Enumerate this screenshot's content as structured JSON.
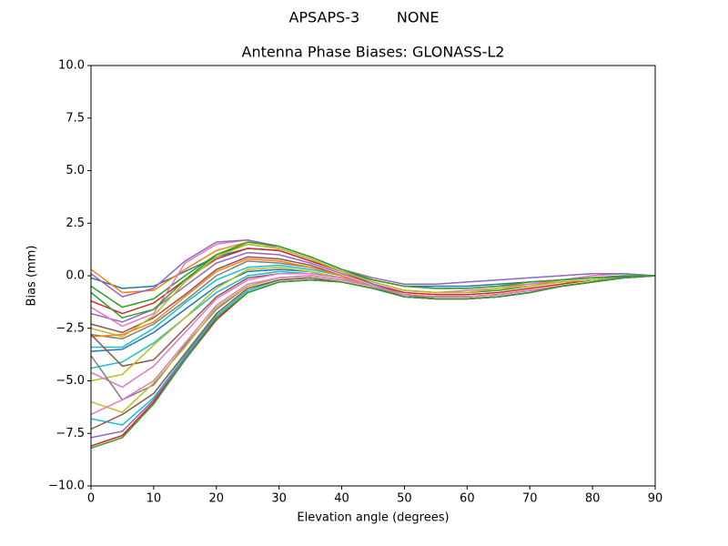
{
  "chart_data": {
    "type": "line",
    "suptitle": "APSAPS-3        NONE",
    "title": "Antenna Phase Biases: GLONASS-L2",
    "xlabel": "Elevation angle (degrees)",
    "ylabel": "Bias (mm)",
    "x": [
      0,
      5,
      10,
      15,
      20,
      25,
      30,
      35,
      40,
      45,
      50,
      55,
      60,
      65,
      70,
      75,
      80,
      85,
      90
    ],
    "xlim": [
      0,
      90
    ],
    "xticks": [
      0,
      10,
      20,
      30,
      40,
      50,
      60,
      70,
      80,
      90
    ],
    "ylim": [
      -10,
      10
    ],
    "yticks": [
      {
        "value": -10,
        "label": "−10.0"
      },
      {
        "value": -7.5,
        "label": "−7.5"
      },
      {
        "value": -5,
        "label": "−5.0"
      },
      {
        "value": -2.5,
        "label": "−2.5"
      },
      {
        "value": 0,
        "label": "0.0"
      },
      2.5,
      {
        "value": 5,
        "label": "5.0"
      },
      7.5,
      {
        "value": 10,
        "label": "10.0"
      }
    ],
    "series": [
      {
        "color": "#1f77b4",
        "values": [
          -0.1,
          -0.6,
          -0.5,
          0.2,
          0.9,
          1.3,
          1.2,
          0.7,
          0.2,
          -0.2,
          -0.5,
          -0.5,
          -0.5,
          -0.4,
          -0.3,
          -0.2,
          -0.1,
          -0.05,
          0
        ]
      },
      {
        "color": "#ff7f0e",
        "values": [
          0.3,
          -0.8,
          -0.7,
          0.3,
          1.2,
          1.6,
          1.4,
          0.9,
          0.3,
          -0.2,
          -0.5,
          -0.6,
          -0.6,
          -0.5,
          -0.4,
          -0.3,
          -0.2,
          -0.1,
          0
        ]
      },
      {
        "color": "#2ca02c",
        "values": [
          -0.5,
          -1.5,
          -1.1,
          0.0,
          1.0,
          1.5,
          1.3,
          0.8,
          0.2,
          -0.3,
          -0.7,
          -0.8,
          -0.8,
          -0.7,
          -0.5,
          -0.3,
          -0.2,
          -0.1,
          0
        ]
      },
      {
        "color": "#d62728",
        "values": [
          -1.2,
          -1.8,
          -1.3,
          -0.2,
          0.8,
          1.3,
          1.2,
          0.7,
          0.2,
          -0.4,
          -0.8,
          -0.9,
          -0.9,
          -0.8,
          -0.6,
          -0.4,
          -0.2,
          -0.1,
          0
        ]
      },
      {
        "color": "#9467bd",
        "values": [
          -1.8,
          -2.2,
          -1.6,
          -0.5,
          0.6,
          1.1,
          1.0,
          0.6,
          0.1,
          -0.4,
          -0.9,
          -1.0,
          -1.0,
          -0.9,
          -0.7,
          -0.5,
          -0.3,
          -0.1,
          0
        ]
      },
      {
        "color": "#8c564b",
        "values": [
          -2.3,
          -2.7,
          -2.0,
          -0.9,
          0.3,
          0.9,
          0.8,
          0.5,
          0.0,
          -0.5,
          -0.9,
          -1.1,
          -1.1,
          -1.0,
          -0.8,
          -0.5,
          -0.3,
          -0.1,
          0
        ]
      },
      {
        "color": "#e377c2",
        "values": [
          -1.5,
          -2.4,
          -1.8,
          0.6,
          1.5,
          1.7,
          1.3,
          0.8,
          0.2,
          -0.3,
          -0.7,
          -0.8,
          -0.7,
          -0.6,
          -0.4,
          -0.2,
          0.0,
          0.1,
          0
        ]
      },
      {
        "color": "#7f7f7f",
        "values": [
          -2.8,
          -3.0,
          -2.3,
          -1.2,
          0.0,
          0.7,
          0.6,
          0.4,
          0.0,
          -0.5,
          -1.0,
          -1.1,
          -1.1,
          -1.0,
          -0.8,
          -0.5,
          -0.3,
          -0.1,
          0
        ]
      },
      {
        "color": "#bcbd22",
        "values": [
          -2.5,
          -2.9,
          -1.9,
          -0.3,
          0.9,
          1.5,
          1.3,
          0.8,
          0.2,
          -0.3,
          -0.7,
          -0.8,
          -0.8,
          -0.6,
          -0.5,
          -0.3,
          -0.2,
          -0.1,
          0
        ]
      },
      {
        "color": "#17becf",
        "values": [
          -3.4,
          -3.4,
          -2.5,
          -1.3,
          -0.2,
          0.4,
          0.5,
          0.3,
          0.0,
          -0.5,
          -0.9,
          -1.0,
          -1.0,
          -0.9,
          -0.7,
          -0.5,
          -0.3,
          -0.1,
          0
        ]
      },
      {
        "color": "#1f77b4",
        "values": [
          -3.6,
          -3.5,
          -2.7,
          -1.6,
          -0.5,
          0.2,
          0.3,
          0.2,
          -0.1,
          -0.5,
          -0.9,
          -1.0,
          -1.0,
          -0.9,
          -0.7,
          -0.5,
          -0.3,
          -0.1,
          0
        ]
      },
      {
        "color": "#ff7f0e",
        "values": [
          -2.9,
          -2.8,
          -2.2,
          -1.0,
          0.2,
          0.8,
          0.7,
          0.4,
          0.0,
          -0.5,
          -0.9,
          -1.0,
          -1.0,
          -0.9,
          -0.7,
          -0.5,
          -0.3,
          -0.1,
          0
        ]
      },
      {
        "color": "#17becf",
        "values": [
          -4.4,
          -4.1,
          -3.2,
          -2.0,
          -0.8,
          0.0,
          0.2,
          0.1,
          -0.1,
          -0.5,
          -0.9,
          -1.0,
          -1.0,
          -0.9,
          -0.7,
          -0.5,
          -0.3,
          -0.1,
          0
        ]
      },
      {
        "color": "#8c564b",
        "values": [
          -2.8,
          -4.3,
          -4.0,
          -2.5,
          -1.0,
          -0.1,
          0.1,
          0.1,
          -0.1,
          -0.5,
          -0.9,
          -1.0,
          -1.0,
          -0.9,
          -0.7,
          -0.5,
          -0.3,
          -0.1,
          0
        ]
      },
      {
        "color": "#bcbd22",
        "values": [
          -5.0,
          -4.7,
          -3.3,
          -2.0,
          -0.6,
          0.3,
          0.4,
          0.2,
          -0.1,
          -0.5,
          -0.9,
          -1.0,
          -1.0,
          -0.9,
          -0.7,
          -0.5,
          -0.3,
          -0.1,
          0
        ]
      },
      {
        "color": "#e377c2",
        "values": [
          -4.6,
          -5.3,
          -4.3,
          -2.7,
          -1.1,
          -0.2,
          0.1,
          0.1,
          -0.1,
          -0.5,
          -0.9,
          -1.0,
          -1.0,
          -0.9,
          -0.7,
          -0.5,
          -0.3,
          -0.1,
          0
        ]
      },
      {
        "color": "#7f7f7f",
        "values": [
          -3.8,
          -5.9,
          -5.2,
          -3.3,
          -1.6,
          -0.5,
          -0.1,
          0.0,
          -0.2,
          -0.5,
          -0.9,
          -1.0,
          -1.0,
          -0.9,
          -0.7,
          -0.5,
          -0.3,
          -0.1,
          0
        ]
      },
      {
        "color": "#bcbd22",
        "values": [
          -6.0,
          -6.5,
          -5.1,
          -3.4,
          -1.5,
          -0.5,
          -0.1,
          0.0,
          -0.2,
          -0.5,
          -0.9,
          -1.0,
          -1.0,
          -0.9,
          -0.7,
          -0.5,
          -0.3,
          -0.1,
          0
        ]
      },
      {
        "color": "#e377c2",
        "values": [
          -6.6,
          -5.9,
          -5.0,
          -3.2,
          -1.4,
          -0.4,
          -0.1,
          0.0,
          -0.2,
          -0.5,
          -0.9,
          -1.0,
          -1.0,
          -0.9,
          -0.7,
          -0.5,
          -0.3,
          -0.1,
          0
        ]
      },
      {
        "color": "#17becf",
        "values": [
          -6.8,
          -7.1,
          -5.8,
          -3.8,
          -1.9,
          -0.7,
          -0.2,
          -0.1,
          -0.3,
          -0.6,
          -1.0,
          -1.1,
          -1.1,
          -1.0,
          -0.8,
          -0.5,
          -0.3,
          -0.1,
          0
        ]
      },
      {
        "color": "#8c564b",
        "values": [
          -7.3,
          -6.6,
          -5.6,
          -3.7,
          -1.8,
          -0.6,
          -0.2,
          -0.1,
          -0.3,
          -0.6,
          -1.0,
          -1.1,
          -1.1,
          -1.0,
          -0.8,
          -0.5,
          -0.3,
          -0.1,
          0
        ]
      },
      {
        "color": "#9467bd",
        "values": [
          -7.7,
          -7.4,
          -5.9,
          -3.9,
          -2.0,
          -0.8,
          -0.3,
          -0.2,
          -0.3,
          -0.6,
          -1.0,
          -1.1,
          -1.1,
          -1.0,
          -0.8,
          -0.5,
          -0.3,
          -0.1,
          0
        ]
      },
      {
        "color": "#d62728",
        "values": [
          -8.1,
          -7.6,
          -6.0,
          -4.0,
          -2.1,
          -0.8,
          -0.3,
          -0.2,
          -0.3,
          -0.6,
          -1.0,
          -1.1,
          -1.1,
          -1.0,
          -0.8,
          -0.5,
          -0.3,
          -0.1,
          0
        ]
      },
      {
        "color": "#2ca02c",
        "values": [
          -8.2,
          -7.7,
          -6.1,
          -4.0,
          -2.0,
          -0.8,
          -0.3,
          -0.2,
          -0.3,
          -0.6,
          -1.0,
          -1.1,
          -1.1,
          -1.0,
          -0.8,
          -0.5,
          -0.3,
          -0.1,
          0
        ]
      },
      {
        "color": "#9467bd",
        "values": [
          0.1,
          -1.0,
          -0.6,
          0.7,
          1.6,
          1.7,
          1.4,
          0.9,
          0.3,
          -0.1,
          -0.4,
          -0.4,
          -0.3,
          -0.2,
          -0.1,
          0.0,
          0.1,
          0.1,
          0
        ]
      },
      {
        "color": "#2ca02c",
        "values": [
          -0.8,
          -2.0,
          -1.6,
          -0.2,
          1.0,
          1.6,
          1.4,
          0.9,
          0.3,
          -0.2,
          -0.5,
          -0.6,
          -0.6,
          -0.5,
          -0.3,
          -0.2,
          -0.1,
          0.0,
          0
        ]
      }
    ]
  }
}
